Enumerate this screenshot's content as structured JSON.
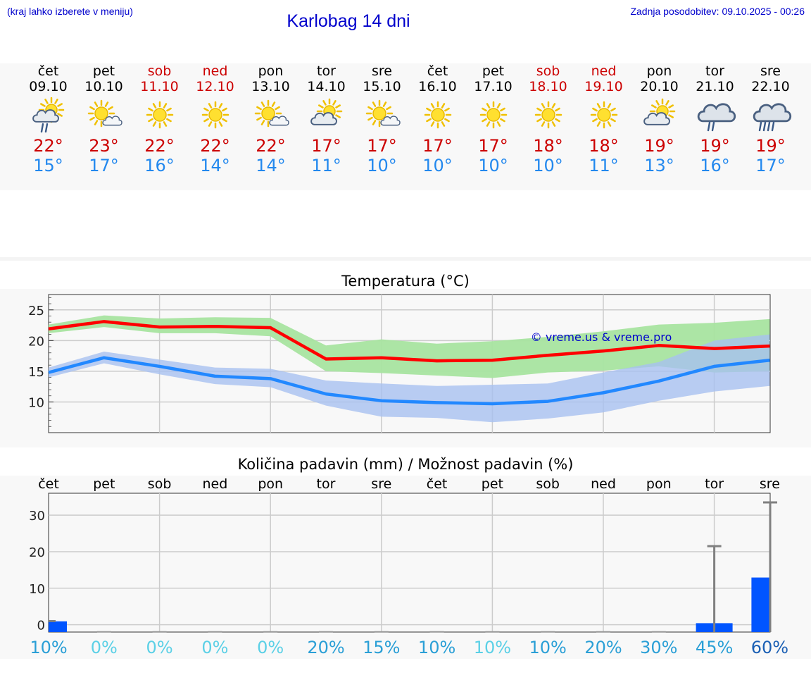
{
  "header": {
    "location_note": "(kraj lahko izberete v meniju)",
    "title": "Karlobag 14 dni",
    "last_update": "Zadnja posodobitev: 09.10.2025 - 00:26"
  },
  "days": [
    {
      "name": "čet",
      "date": "09.10",
      "weekend": false,
      "icon": "partly-cloudy-rain-icon",
      "max": "22°",
      "min": "15°"
    },
    {
      "name": "pet",
      "date": "10.10",
      "weekend": false,
      "icon": "sun-small-cloud-icon",
      "max": "23°",
      "min": "17°"
    },
    {
      "name": "sob",
      "date": "11.10",
      "weekend": true,
      "icon": "sun-icon",
      "max": "22°",
      "min": "16°"
    },
    {
      "name": "ned",
      "date": "12.10",
      "weekend": true,
      "icon": "sun-icon",
      "max": "22°",
      "min": "14°"
    },
    {
      "name": "pon",
      "date": "13.10",
      "weekend": false,
      "icon": "sun-small-cloud-icon",
      "max": "22°",
      "min": "14°"
    },
    {
      "name": "tor",
      "date": "14.10",
      "weekend": false,
      "icon": "partly-cloudy-icon",
      "max": "17°",
      "min": "11°"
    },
    {
      "name": "sre",
      "date": "15.10",
      "weekend": false,
      "icon": "sun-small-cloud-icon",
      "max": "17°",
      "min": "10°"
    },
    {
      "name": "čet",
      "date": "16.10",
      "weekend": false,
      "icon": "sun-icon",
      "max": "17°",
      "min": "10°"
    },
    {
      "name": "pet",
      "date": "17.10",
      "weekend": false,
      "icon": "sun-icon",
      "max": "17°",
      "min": "10°"
    },
    {
      "name": "sob",
      "date": "18.10",
      "weekend": true,
      "icon": "sun-icon",
      "max": "18°",
      "min": "10°"
    },
    {
      "name": "ned",
      "date": "19.10",
      "weekend": true,
      "icon": "sun-icon",
      "max": "18°",
      "min": "11°"
    },
    {
      "name": "pon",
      "date": "20.10",
      "weekend": false,
      "icon": "partly-cloudy-icon",
      "max": "19°",
      "min": "13°"
    },
    {
      "name": "tor",
      "date": "21.10",
      "weekend": false,
      "icon": "cloud-rain-icon",
      "max": "19°",
      "min": "16°"
    },
    {
      "name": "sre",
      "date": "22.10",
      "weekend": false,
      "icon": "cloud-heavy-rain-icon",
      "max": "19°",
      "min": "17°"
    }
  ],
  "colors": {
    "max_line": "#ff0000",
    "min_line": "#2288ff",
    "max_band": "#a8e4a0",
    "min_band": "#a8c0f0",
    "precip_bar": "#0055ff",
    "whisker": "#808080",
    "grid": "#cccccc"
  },
  "chart_data": [
    {
      "type": "line",
      "title": "Temperatura (°C)",
      "x": [
        "09.10",
        "10.10",
        "11.10",
        "12.10",
        "13.10",
        "14.10",
        "15.10",
        "16.10",
        "17.10",
        "18.10",
        "19.10",
        "20.10",
        "21.10",
        "22.10"
      ],
      "ylim": [
        5,
        27.5
      ],
      "yticks": [
        10,
        15,
        20,
        25
      ],
      "watermark": "© vreme.us & vreme.pro",
      "series": [
        {
          "name": "max",
          "values": [
            21.9,
            23.1,
            22.2,
            22.3,
            22.1,
            17.0,
            17.2,
            16.7,
            16.8,
            17.6,
            18.3,
            19.2,
            18.7,
            19.1
          ],
          "band_low": [
            21.2,
            22.2,
            21.2,
            21.2,
            20.7,
            15.0,
            14.7,
            14.3,
            13.9,
            14.8,
            15.1,
            15.8,
            14.8,
            15.0
          ],
          "band_high": [
            22.6,
            24.1,
            23.6,
            23.8,
            23.7,
            19.2,
            20.2,
            19.5,
            19.9,
            20.6,
            21.5,
            22.6,
            22.9,
            23.5
          ]
        },
        {
          "name": "min",
          "values": [
            14.8,
            17.2,
            15.8,
            14.2,
            13.8,
            11.3,
            10.2,
            9.9,
            9.7,
            10.1,
            11.5,
            13.4,
            15.8,
            16.8
          ],
          "band_low": [
            14.0,
            16.3,
            14.5,
            12.9,
            12.4,
            9.4,
            7.6,
            7.4,
            6.7,
            7.3,
            8.3,
            10.2,
            11.7,
            12.6
          ],
          "band_high": [
            15.6,
            18.2,
            16.9,
            15.6,
            15.4,
            13.5,
            13.0,
            12.6,
            12.8,
            13.0,
            14.8,
            16.5,
            20.0,
            21.0
          ]
        }
      ]
    },
    {
      "type": "bar",
      "title": "Količina padavin (mm) / Možnost padavin (%)",
      "categories": [
        "čet",
        "pet",
        "sob",
        "ned",
        "pon",
        "tor",
        "sre",
        "čet",
        "pet",
        "sob",
        "ned",
        "pon",
        "tor",
        "sre"
      ],
      "ylim": [
        -2,
        36
      ],
      "yticks": [
        0,
        10,
        20,
        30
      ],
      "values": [
        1.0,
        0,
        0,
        0,
        0,
        0,
        0,
        0,
        0,
        0,
        0,
        0,
        0.5,
        13.0
      ],
      "max_values": [
        1.0,
        0,
        0,
        0,
        0,
        0,
        0,
        0,
        0,
        0,
        0,
        0,
        21.5,
        33.5
      ],
      "probability": [
        "10%",
        "0%",
        "0%",
        "0%",
        "0%",
        "20%",
        "15%",
        "10%",
        "10%",
        "10%",
        "20%",
        "30%",
        "45%",
        "60%"
      ],
      "probability_colors": [
        "#2a9fd6",
        "#5bd0e6",
        "#5bd0e6",
        "#5bd0e6",
        "#5bd0e6",
        "#2a9fd6",
        "#2a9fd6",
        "#2a9fd6",
        "#5bd0e6",
        "#2a9fd6",
        "#2a9fd6",
        "#2a9fd6",
        "#2a9fd6",
        "#1a5fb4"
      ]
    }
  ]
}
